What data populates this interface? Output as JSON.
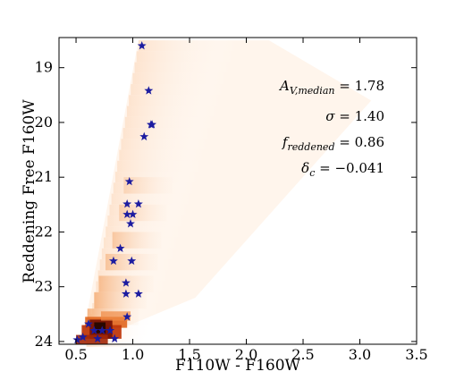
{
  "chart_data": {
    "type": "scatter",
    "xlabel": "F110W - F160W",
    "ylabel": "Reddening Free F160W",
    "xlim": [
      0.35,
      3.5
    ],
    "ylim": [
      24.05,
      18.45
    ],
    "y_inverted": true,
    "x_ticks": [
      "0.5",
      "1.0",
      "1.5",
      "2.0",
      "2.5",
      "3.0",
      "3.5"
    ],
    "x_tick_values": [
      0.5,
      1.0,
      1.5,
      2.0,
      2.5,
      3.0,
      3.5
    ],
    "y_ticks": [
      "19",
      "20",
      "21",
      "22",
      "23",
      "24"
    ],
    "y_tick_values": [
      19,
      20,
      21,
      22,
      23,
      24
    ],
    "grid": false,
    "density_colormap": "white-orange-red-black",
    "star_color": "#1c1ca0",
    "annotations": [
      {
        "label_main": "A",
        "label_sub": "V,median",
        "value": "= 1.78"
      },
      {
        "label_main": "σ",
        "label_sub": "",
        "value": "= 1.40"
      },
      {
        "label_main": "f",
        "label_sub": "reddened",
        "value": "= 0.86"
      },
      {
        "label_main": "δ",
        "label_sub": "c",
        "value": "= −0.041"
      }
    ],
    "stars": [
      {
        "x": 1.08,
        "y": 18.6
      },
      {
        "x": 1.14,
        "y": 19.42
      },
      {
        "x": 1.16,
        "y": 20.04
      },
      {
        "x": 1.17,
        "y": 20.04
      },
      {
        "x": 1.1,
        "y": 20.26
      },
      {
        "x": 0.97,
        "y": 21.08
      },
      {
        "x": 0.95,
        "y": 21.49
      },
      {
        "x": 1.05,
        "y": 21.49
      },
      {
        "x": 0.95,
        "y": 21.68
      },
      {
        "x": 1.0,
        "y": 21.68
      },
      {
        "x": 0.98,
        "y": 21.85
      },
      {
        "x": 0.89,
        "y": 22.3
      },
      {
        "x": 0.83,
        "y": 22.53
      },
      {
        "x": 0.99,
        "y": 22.53
      },
      {
        "x": 0.94,
        "y": 22.93
      },
      {
        "x": 1.05,
        "y": 23.13
      },
      {
        "x": 0.94,
        "y": 23.13
      },
      {
        "x": 0.95,
        "y": 23.55
      },
      {
        "x": 0.61,
        "y": 23.68
      },
      {
        "x": 0.66,
        "y": 23.8
      },
      {
        "x": 0.73,
        "y": 23.8
      },
      {
        "x": 0.8,
        "y": 23.8
      },
      {
        "x": 0.56,
        "y": 23.92
      },
      {
        "x": 0.69,
        "y": 23.95
      },
      {
        "x": 0.84,
        "y": 23.95
      },
      {
        "x": 0.51,
        "y": 23.97
      }
    ]
  }
}
